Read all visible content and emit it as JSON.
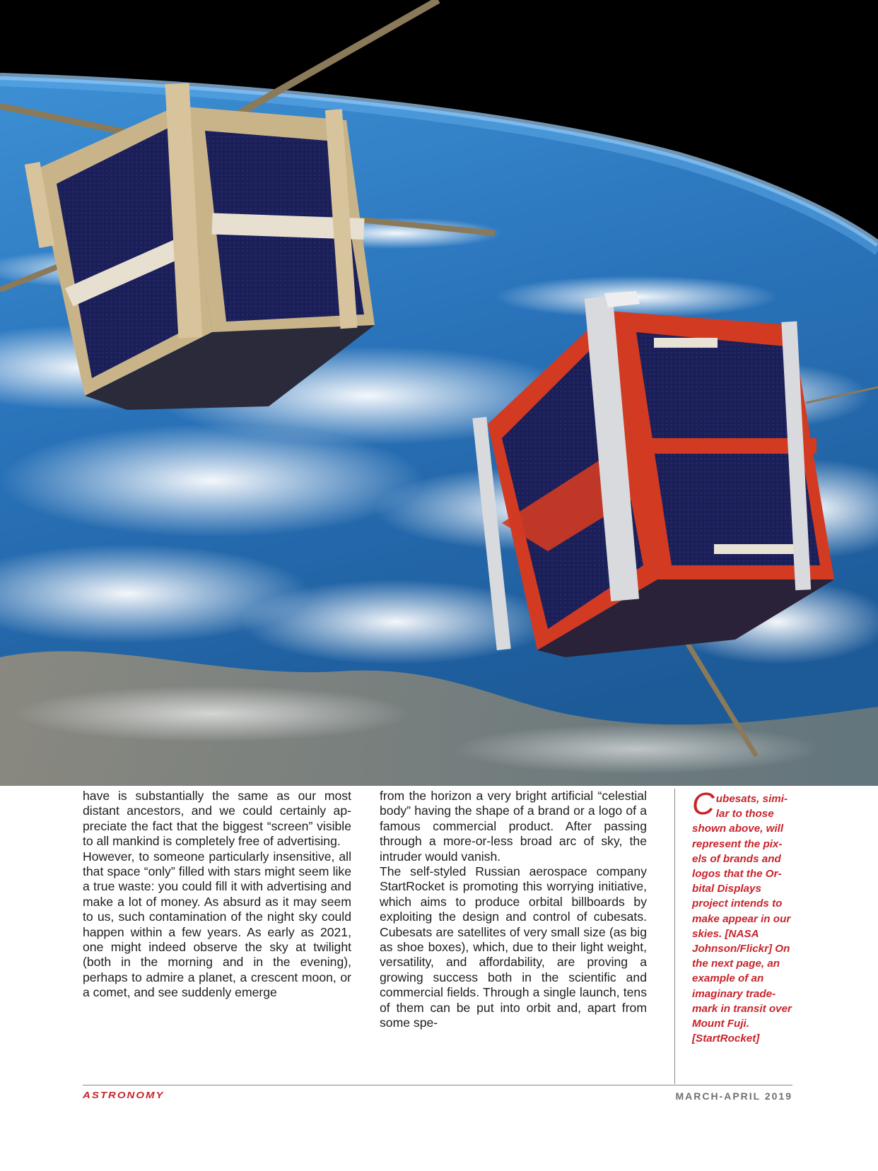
{
  "hero": {
    "image": "cubesats-orbiting-earth-illustration",
    "colors": {
      "space": "#000000",
      "ocean": "#2b7fc4",
      "horizon": "#8fc8f0",
      "gold_cube_frame": "#c9b48a",
      "red_cube_panel": "#d23a22",
      "solar_cell": "#1a1d4e"
    }
  },
  "article": {
    "column1": [
      "have is substantially the same as our most distant ancestors, and we could certainly ap­preciate the fact that the biggest “screen” visible to all mankind is completely free of advertising.",
      "However, to someone particularly insensi­tive, all that space “only” filled with stars might seem like a true waste: you could fill it with advertising and make a lot of money. As absurd as it may seem to us, such contam­ination of the night sky could happen within a few years. As early as 2021, one might indeed observe the sky at twilight (both in the morning and in the evening), perhaps to admire a planet, a crescent moon, or a comet, and see suddenly emerge"
    ],
    "column2": [
      "from the horizon a very bright artificial “ce­lestial body” having the shape of a brand or a logo of a famous commercial product. After passing through a more-or-less broad arc of sky, the intruder would vanish.",
      "The self-styled Russian aerospace company StartRocket is promoting this worrying ini­tiative, which aims to produce orbital bill­boards by exploiting the design and control of cubesats. Cubesats are satellites of very small size (as big as shoe boxes), which, due to their light weight, versatility, and afford­ability, are proving a growing success both in the scientific and commercial fields. Through a single launch, tens of them can be put into orbit and, apart from some spe-"
    ]
  },
  "caption": {
    "initial": "C",
    "text": "ubesats, simi­lar to those shown above, will represent the pix­els of brands and logos that the Or­bital Displays project intends to make appear in our skies. [NASA Johnson/Flickr] On the next page, an example of an imaginary trade­mark in transit over Mount Fuji. [StartRocket]",
    "color": "#c8242b"
  },
  "footer": {
    "logo": "ASTRONOMY",
    "issue": "MARCH-APRIL 2019"
  }
}
